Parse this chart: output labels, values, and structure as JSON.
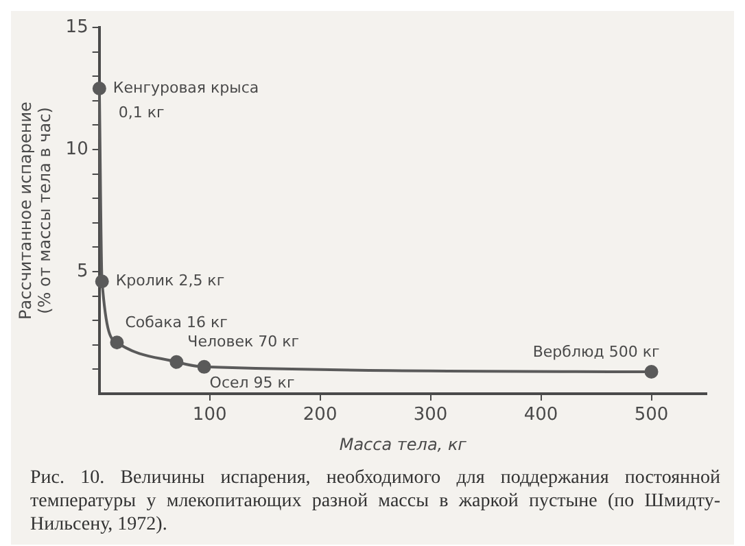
{
  "chart_data": {
    "type": "line",
    "xlabel": "Масса тела, кг",
    "ylabel": "Рассчитанное испарение (% от массы тела в час)",
    "x": [
      0.1,
      2.5,
      16,
      70,
      95,
      500
    ],
    "series": [
      {
        "color": "#5a5a5a",
        "values": [
          12.5,
          4.6,
          2.1,
          1.3,
          1.1,
          0.9
        ]
      }
    ],
    "xlim": [
      0,
      550
    ],
    "xticks": [
      100,
      200,
      300,
      400,
      500
    ],
    "ylim": [
      0,
      15
    ],
    "yticks": [
      {
        "value": 1,
        "label": null
      },
      {
        "value": 2,
        "label": null
      },
      {
        "value": 3,
        "label": null
      },
      {
        "value": 4,
        "label": null
      },
      5,
      {
        "value": 6,
        "label": null
      },
      {
        "value": 7,
        "label": null
      },
      {
        "value": 8,
        "label": null
      },
      {
        "value": 9,
        "label": null
      },
      10,
      {
        "value": 11,
        "label": null
      },
      {
        "value": 12,
        "label": null
      },
      {
        "value": 13,
        "label": null
      },
      {
        "value": 14,
        "label": null
      },
      15
    ],
    "grid": false,
    "marker": "circle",
    "line_style": "solid",
    "legend": false,
    "annotations": [
      {
        "text": "Кенгуровая крыса 0,1 кг",
        "x": 0.1,
        "y": 12.5
      },
      {
        "text": "Кролик 2,5 кг",
        "x": 2.5,
        "y": 4.6
      },
      {
        "text": "Собака 16 кг",
        "x": 16,
        "y": 2.1
      },
      {
        "text": "Человек 70 кг",
        "x": 70,
        "y": 1.3
      },
      {
        "text": "Осел 95 кг",
        "x": 95,
        "y": 1.1
      },
      {
        "text": "Верблюд 500 кг",
        "x": 500,
        "y": 0.9
      },
      "Рис. 10. Величины испарения, необходимого для поддержания постоянной температуры у млекопитающих разной массы в жаркой пустыне (по Шмидту-Нильсену, 1972)."
    ]
  }
}
